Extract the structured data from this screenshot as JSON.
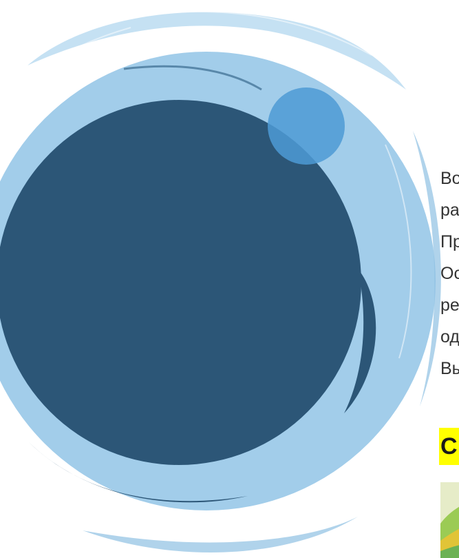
{
  "colors": {
    "dark_blue": "#2c5677",
    "light_blue": "#9fcbea",
    "accent_blue": "#4d9ad5",
    "highlight": "#ffff00",
    "text": "#333333"
  },
  "article": {
    "lines": [
      "Во",
      "ра",
      "Пр",
      "Ос",
      "ре",
      "од",
      "Вы"
    ],
    "heading": "С"
  },
  "image": {
    "icon": "photo-thumbnail-icon"
  }
}
